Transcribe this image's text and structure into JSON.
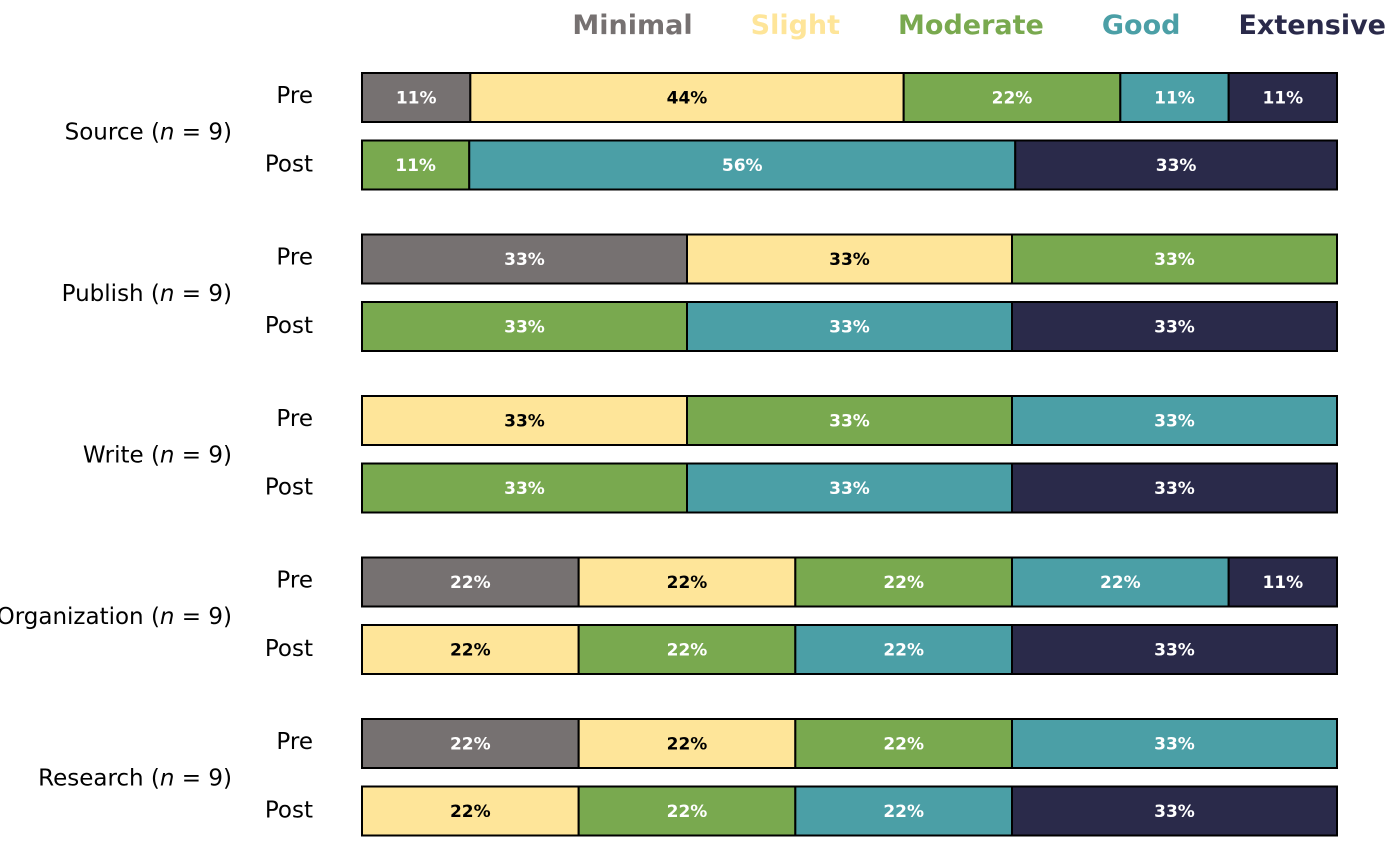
{
  "chart_data": {
    "type": "bar",
    "orientation": "horizontal",
    "stacked": true,
    "legend": [
      {
        "name": "Minimal",
        "color": "#767171",
        "text_color": "#767171"
      },
      {
        "name": "Slight",
        "color": "#FEE599",
        "text_color": "#FEE599"
      },
      {
        "name": "Moderate",
        "color": "#79A94F",
        "text_color": "#79A94F"
      },
      {
        "name": "Good",
        "color": "#4B9FA6",
        "text_color": "#4B9FA6"
      },
      {
        "name": "Extensive",
        "color": "#2A2A4A",
        "text_color": "#2A2A4A"
      }
    ],
    "legend_position": "top-right",
    "label_text_colors": {
      "Minimal": "#ffffff",
      "Slight": "#000000",
      "Moderate": "#ffffff",
      "Good": "#ffffff",
      "Extensive": "#ffffff"
    },
    "groups": [
      {
        "label": "Source (",
        "n_symbol": "n",
        "label_suffix": " = 9)",
        "rows": [
          {
            "name": "Pre",
            "values": {
              "Minimal": 11,
              "Slight": 44,
              "Moderate": 22,
              "Good": 11,
              "Extensive": 11
            },
            "labels": {
              "Minimal": "11%",
              "Slight": "44%",
              "Moderate": "22%",
              "Good": "11%",
              "Extensive": "11%"
            }
          },
          {
            "name": "Post",
            "values": {
              "Minimal": 0,
              "Slight": 0,
              "Moderate": 11,
              "Good": 56,
              "Extensive": 33
            },
            "labels": {
              "Moderate": "11%",
              "Good": "56%",
              "Extensive": "33%"
            }
          }
        ]
      },
      {
        "label": "Publish (",
        "n_symbol": "n",
        "label_suffix": " = 9)",
        "rows": [
          {
            "name": "Pre",
            "values": {
              "Minimal": 33,
              "Slight": 33,
              "Moderate": 33,
              "Good": 0,
              "Extensive": 0
            },
            "labels": {
              "Minimal": "33%",
              "Slight": "33%",
              "Moderate": "33%"
            }
          },
          {
            "name": "Post",
            "values": {
              "Minimal": 0,
              "Slight": 0,
              "Moderate": 33,
              "Good": 33,
              "Extensive": 33
            },
            "labels": {
              "Moderate": "33%",
              "Good": "33%",
              "Extensive": "33%"
            }
          }
        ]
      },
      {
        "label": "Write (",
        "n_symbol": "n",
        "label_suffix": " = 9)",
        "rows": [
          {
            "name": "Pre",
            "values": {
              "Minimal": 0,
              "Slight": 33,
              "Moderate": 33,
              "Good": 33,
              "Extensive": 0
            },
            "labels": {
              "Slight": "33%",
              "Moderate": "33%",
              "Good": "33%"
            }
          },
          {
            "name": "Post",
            "values": {
              "Minimal": 0,
              "Slight": 0,
              "Moderate": 33,
              "Good": 33,
              "Extensive": 33
            },
            "labels": {
              "Moderate": "33%",
              "Good": "33%",
              "Extensive": "33%"
            }
          }
        ]
      },
      {
        "label": "Organization (",
        "n_symbol": "n",
        "label_suffix": " = 9)",
        "rows": [
          {
            "name": "Pre",
            "values": {
              "Minimal": 22,
              "Slight": 22,
              "Moderate": 22,
              "Good": 22,
              "Extensive": 11
            },
            "labels": {
              "Minimal": "22%",
              "Slight": "22%",
              "Moderate": "22%",
              "Good": "22%",
              "Extensive": "11%"
            }
          },
          {
            "name": "Post",
            "values": {
              "Minimal": 0,
              "Slight": 22,
              "Moderate": 22,
              "Good": 22,
              "Extensive": 33
            },
            "labels": {
              "Slight": "22%",
              "Moderate": "22%",
              "Good": "22%",
              "Extensive": "33%"
            }
          }
        ]
      },
      {
        "label": "Research (",
        "n_symbol": "n",
        "label_suffix": " = 9)",
        "rows": [
          {
            "name": "Pre",
            "values": {
              "Minimal": 22,
              "Slight": 22,
              "Moderate": 22,
              "Good": 33,
              "Extensive": 0
            },
            "labels": {
              "Minimal": "22%",
              "Slight": "22%",
              "Moderate": "22%",
              "Good": "33%"
            }
          },
          {
            "name": "Post",
            "values": {
              "Minimal": 0,
              "Slight": 22,
              "Moderate": 22,
              "Good": 22,
              "Extensive": 33
            },
            "labels": {
              "Slight": "22%",
              "Moderate": "22%",
              "Good": "22%",
              "Extensive": "33%"
            }
          }
        ]
      }
    ],
    "xlim": [
      0,
      100
    ],
    "grid": false
  }
}
